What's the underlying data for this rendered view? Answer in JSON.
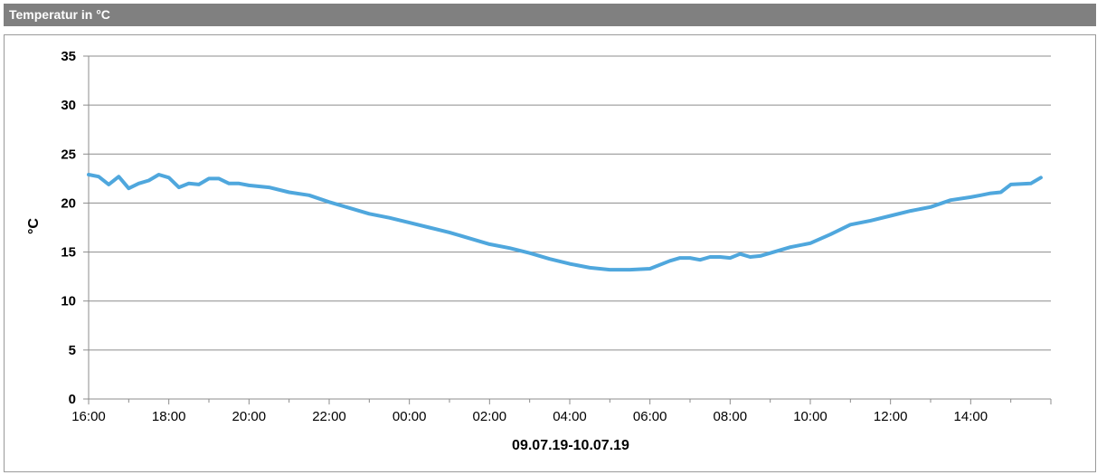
{
  "header": {
    "title": "Temperatur in °C"
  },
  "chart_data": {
    "type": "line",
    "title": "",
    "xlabel": "09.07.19-10.07.19",
    "ylabel": "°C",
    "ylim": [
      0,
      35
    ],
    "y_ticks": [
      "0",
      "5",
      "10",
      "15",
      "20",
      "25",
      "30",
      "35"
    ],
    "x_ticks": [
      "16:00",
      "18:00",
      "20:00",
      "22:00",
      "00:00",
      "02:00",
      "04:00",
      "06:00",
      "08:00",
      "10:00",
      "12:00",
      "14:00"
    ],
    "grid": true,
    "legend": "none",
    "series": [
      {
        "color": "#4fa7dd",
        "x": [
          "16:00",
          "16:15",
          "16:30",
          "16:45",
          "17:00",
          "17:15",
          "17:30",
          "17:45",
          "18:00",
          "18:15",
          "18:30",
          "18:45",
          "19:00",
          "19:15",
          "19:30",
          "19:45",
          "20:00",
          "20:30",
          "21:00",
          "21:30",
          "22:00",
          "22:30",
          "23:00",
          "23:30",
          "00:00",
          "00:30",
          "01:00",
          "01:30",
          "02:00",
          "02:30",
          "03:00",
          "03:30",
          "04:00",
          "04:30",
          "05:00",
          "05:30",
          "06:00",
          "06:30",
          "06:45",
          "07:00",
          "07:15",
          "07:30",
          "07:45",
          "08:00",
          "08:15",
          "08:30",
          "08:45",
          "09:00",
          "09:30",
          "10:00",
          "10:30",
          "11:00",
          "11:30",
          "12:00",
          "12:30",
          "13:00",
          "13:30",
          "14:00",
          "14:15",
          "14:30",
          "14:45",
          "15:00",
          "15:30",
          "15:45"
        ],
        "values": [
          22.9,
          22.7,
          21.9,
          22.7,
          21.5,
          22.0,
          22.3,
          22.9,
          22.6,
          21.6,
          22.0,
          21.9,
          22.5,
          22.5,
          22.0,
          22.0,
          21.8,
          21.6,
          21.1,
          20.8,
          20.1,
          19.5,
          18.9,
          18.5,
          18.0,
          17.5,
          17.0,
          16.4,
          15.8,
          15.4,
          14.9,
          14.3,
          13.8,
          13.4,
          13.2,
          13.2,
          13.3,
          14.1,
          14.4,
          14.4,
          14.2,
          14.5,
          14.5,
          14.4,
          14.8,
          14.5,
          14.6,
          14.9,
          15.5,
          15.9,
          16.8,
          17.8,
          18.2,
          18.7,
          19.2,
          19.6,
          20.3,
          20.6,
          20.8,
          21.0,
          21.1,
          21.9,
          22.0,
          22.6
        ]
      }
    ]
  }
}
